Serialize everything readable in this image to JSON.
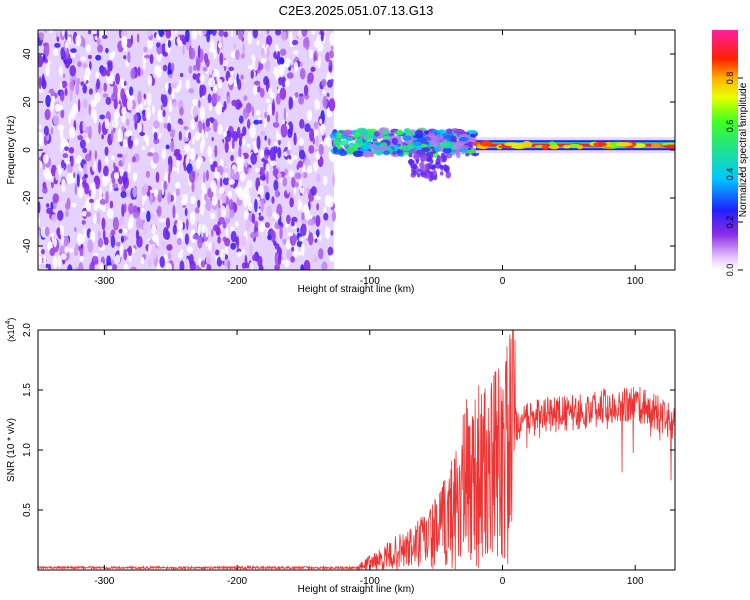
{
  "figure_title": "C2E3.2025.051.07.13.G13",
  "chart_data": [
    {
      "type": "heatmap",
      "xlabel": "Height of straight line (km)",
      "ylabel": "Frequency (Hz)",
      "xlim": [
        -350,
        130
      ],
      "ylim": [
        -50,
        50
      ],
      "x_ticks": [
        -300,
        -200,
        -100,
        0,
        100
      ],
      "y_ticks": [
        -40,
        -20,
        0,
        20,
        40
      ],
      "colorbar": {
        "label": "Normalized spectral amplitude",
        "range": [
          0,
          1
        ],
        "ticks": [
          0.0,
          0.2,
          0.4,
          0.6,
          0.8
        ]
      },
      "regions": [
        {
          "x_range": [
            -350,
            -127
          ],
          "freq_range": [
            -50,
            50
          ],
          "amplitude": [
            0.05,
            0.2
          ],
          "description_level": "noise"
        },
        {
          "x_range": [
            -127,
            -20
          ],
          "freq_center": 3,
          "amplitude_max": 0.6
        },
        {
          "x_range": [
            -20,
            130
          ],
          "freq_center": 2,
          "amplitude_max": 0.9
        }
      ]
    },
    {
      "type": "line",
      "xlabel": "Height of straight line (km)",
      "ylabel": "SNR (10 * v/v)",
      "y_scale_label": "(x10",
      "y_scale_exp": "4",
      "xlim": [
        -350,
        130
      ],
      "ylim": [
        0,
        2.0
      ],
      "x_ticks": [
        -300,
        -200,
        -100,
        0,
        100
      ],
      "y_ticks": [
        0.5,
        1.0,
        1.5,
        2.0
      ],
      "series": [
        {
          "name": "SNR",
          "color": "#ee3333",
          "x": [
            -350,
            -300,
            -250,
            -200,
            -150,
            -110,
            -100,
            -90,
            -80,
            -70,
            -60,
            -50,
            -40,
            -30,
            -20,
            -10,
            0,
            10,
            20,
            30,
            40,
            50,
            60,
            70,
            80,
            90,
            100,
            110,
            120,
            130
          ],
          "y": [
            0.02,
            0.02,
            0.02,
            0.02,
            0.02,
            0.02,
            0.08,
            0.12,
            0.18,
            0.22,
            0.3,
            0.38,
            0.55,
            0.85,
            1.0,
            0.95,
            1.2,
            1.3,
            1.35,
            1.38,
            1.4,
            1.4,
            1.42,
            1.45,
            1.48,
            1.5,
            1.48,
            1.45,
            1.38,
            1.3
          ]
        }
      ]
    }
  ]
}
